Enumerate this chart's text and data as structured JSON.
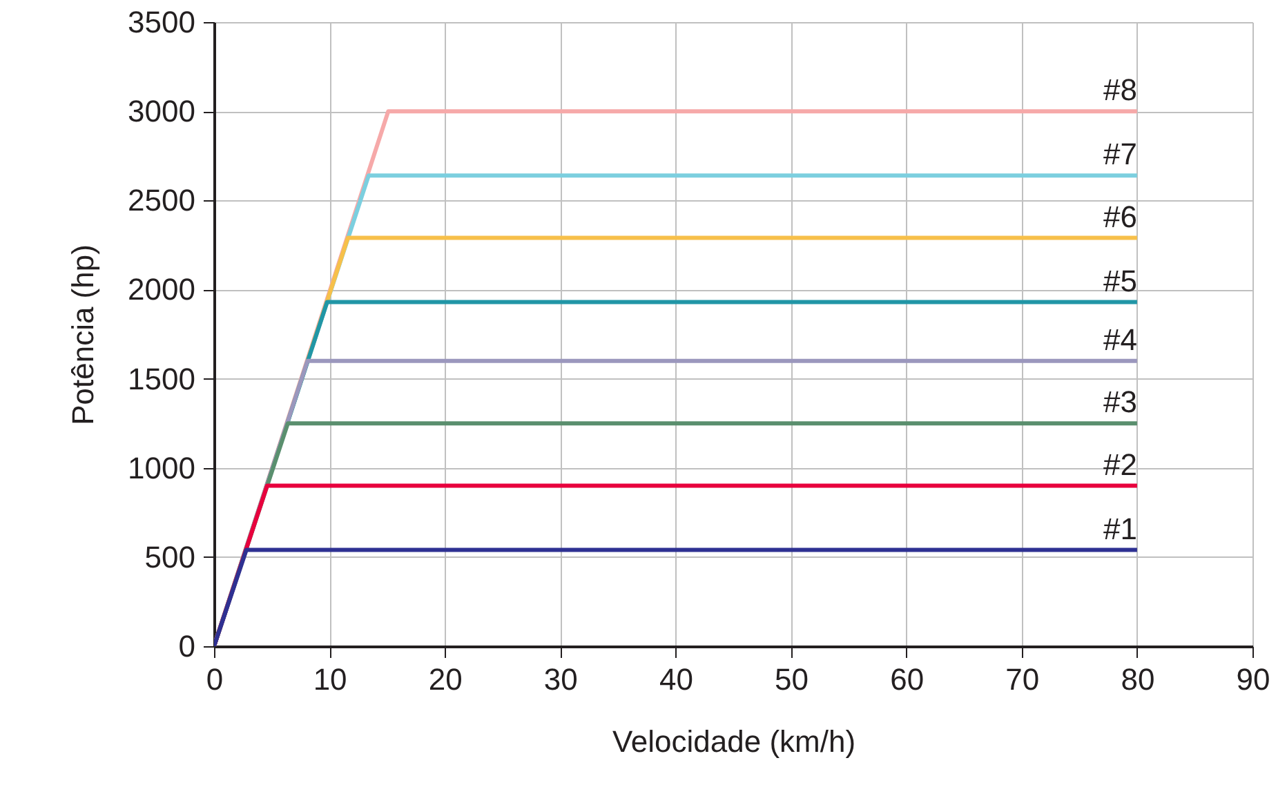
{
  "chart_data": {
    "type": "line",
    "xlabel": "Velocidade (km/h)",
    "ylabel": "Potência (hp)",
    "xlim": [
      0,
      90
    ],
    "ylim": [
      0,
      3500
    ],
    "xticks": [
      0,
      10,
      20,
      30,
      40,
      50,
      60,
      70,
      80,
      90
    ],
    "yticks": [
      0,
      500,
      1000,
      1500,
      2000,
      2500,
      3000,
      3500
    ],
    "grid": true,
    "marker": "none",
    "line_style": "solid",
    "series": [
      {
        "name": "#1",
        "color": "#2e3192",
        "x": [
          0,
          2.8,
          80
        ],
        "values": [
          0,
          540,
          540
        ]
      },
      {
        "name": "#2",
        "color": "#e8003d",
        "x": [
          0,
          4.6,
          80
        ],
        "values": [
          0,
          900,
          900
        ]
      },
      {
        "name": "#3",
        "color": "#5a8f6e",
        "x": [
          0,
          6.4,
          80
        ],
        "values": [
          0,
          1250,
          1250
        ]
      },
      {
        "name": "#4",
        "color": "#9b97bd",
        "x": [
          0,
          8.1,
          80
        ],
        "values": [
          0,
          1600,
          1600
        ]
      },
      {
        "name": "#5",
        "color": "#2196a6",
        "x": [
          0,
          9.8,
          80
        ],
        "values": [
          0,
          1930,
          1930
        ]
      },
      {
        "name": "#6",
        "color": "#f7c04a",
        "x": [
          0,
          11.6,
          80
        ],
        "values": [
          0,
          2290,
          2290
        ]
      },
      {
        "name": "#7",
        "color": "#7ccfdf",
        "x": [
          0,
          13.4,
          80
        ],
        "values": [
          0,
          2640,
          2640
        ]
      },
      {
        "name": "#8",
        "color": "#f6a9a9",
        "x": [
          0,
          15.1,
          80
        ],
        "values": [
          0,
          3000,
          3000
        ]
      }
    ]
  }
}
